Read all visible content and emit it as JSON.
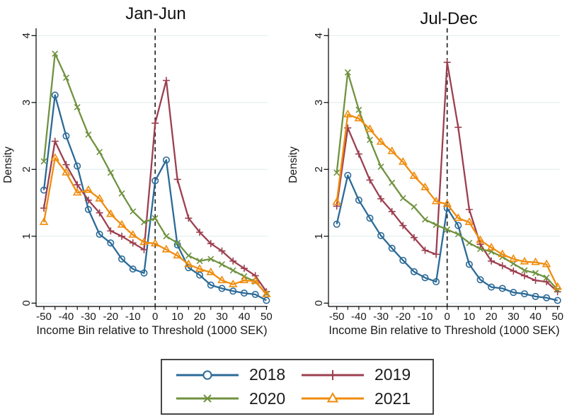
{
  "figure": {
    "background": "#ffffff",
    "grid_color": "#e7f0f1",
    "axis_color": "#000000",
    "text_color": "#1a1a1a",
    "dashed_line_color": "#262626",
    "legend_border_color": "#474747"
  },
  "chart_data": {
    "type": "line",
    "x": [
      -50,
      -45,
      -40,
      -35,
      -30,
      -25,
      -20,
      -15,
      -10,
      -5,
      0,
      5,
      10,
      15,
      20,
      25,
      30,
      35,
      40,
      45,
      50
    ],
    "xlabel": "Income Bin relative to Threshold (1000 SEK)",
    "ylabel": "Density",
    "xlim": [
      -53.5,
      51.5
    ],
    "ylim": [
      0,
      4.15
    ],
    "x_major_ticks": [
      -50,
      -40,
      -30,
      -20,
      -10,
      0,
      10,
      20,
      30,
      40,
      50
    ],
    "x_minor_step": 5,
    "y_ticks": [
      0,
      1,
      2,
      3,
      4
    ],
    "grid": "horizontal",
    "vline_x": 0,
    "legend_position": "bottom-center",
    "panels": [
      {
        "title": "Jan-Jun",
        "series": [
          {
            "name": "2018",
            "color": "#2b6a97",
            "marker": "circle",
            "values": [
              1.69,
              3.11,
              2.5,
              2.05,
              1.4,
              1.03,
              0.9,
              0.66,
              0.51,
              0.45,
              1.83,
              2.14,
              0.87,
              0.53,
              0.42,
              0.27,
              0.22,
              0.18,
              0.15,
              0.13,
              0.04
            ]
          },
          {
            "name": "2019",
            "color": "#9c3f4f",
            "marker": "plus",
            "values": [
              1.42,
              2.42,
              2.07,
              1.77,
              1.54,
              1.35,
              1.08,
              1.0,
              0.9,
              0.8,
              2.69,
              3.33,
              1.85,
              1.27,
              1.06,
              0.89,
              0.78,
              0.63,
              0.52,
              0.41,
              0.17
            ]
          },
          {
            "name": "2020",
            "color": "#70923f",
            "marker": "x",
            "values": [
              2.12,
              3.73,
              3.37,
              2.93,
              2.52,
              2.26,
              1.95,
              1.64,
              1.37,
              1.21,
              1.27,
              1.0,
              0.9,
              0.71,
              0.63,
              0.66,
              0.58,
              0.49,
              0.4,
              0.32,
              0.14
            ]
          },
          {
            "name": "2021",
            "color": "#ef8c0e",
            "marker": "triangle",
            "values": [
              1.21,
              2.17,
              1.95,
              1.65,
              1.69,
              1.56,
              1.33,
              1.17,
              1.02,
              0.91,
              0.89,
              0.8,
              0.71,
              0.58,
              0.51,
              0.46,
              0.34,
              0.28,
              0.34,
              0.33,
              0.13
            ]
          }
        ]
      },
      {
        "title": "Jul-Dec",
        "series": [
          {
            "name": "2018",
            "color": "#2b6a97",
            "marker": "circle",
            "values": [
              1.18,
              1.91,
              1.54,
              1.27,
              1.01,
              0.82,
              0.64,
              0.47,
              0.38,
              0.32,
              1.42,
              1.16,
              0.58,
              0.35,
              0.24,
              0.22,
              0.16,
              0.14,
              0.1,
              0.08,
              0.04
            ]
          },
          {
            "name": "2019",
            "color": "#9c3f4f",
            "marker": "plus",
            "values": [
              1.45,
              2.62,
              2.23,
              1.84,
              1.56,
              1.37,
              1.16,
              0.98,
              0.79,
              0.73,
              3.6,
              2.63,
              1.4,
              0.88,
              0.63,
              0.56,
              0.48,
              0.41,
              0.34,
              0.32,
              0.17
            ]
          },
          {
            "name": "2020",
            "color": "#70923f",
            "marker": "x",
            "values": [
              1.95,
              3.45,
              2.89,
              2.44,
              2.04,
              1.8,
              1.57,
              1.44,
              1.25,
              1.17,
              1.1,
              1.03,
              0.9,
              0.81,
              0.77,
              0.69,
              0.59,
              0.49,
              0.45,
              0.38,
              0.2
            ]
          },
          {
            "name": "2021",
            "color": "#ef8c0e",
            "marker": "triangle",
            "values": [
              1.51,
              2.82,
              2.76,
              2.6,
              2.41,
              2.27,
              2.11,
              1.9,
              1.73,
              1.52,
              1.48,
              1.27,
              1.21,
              0.94,
              0.83,
              0.73,
              0.66,
              0.62,
              0.61,
              0.58,
              0.24
            ]
          }
        ]
      }
    ]
  }
}
